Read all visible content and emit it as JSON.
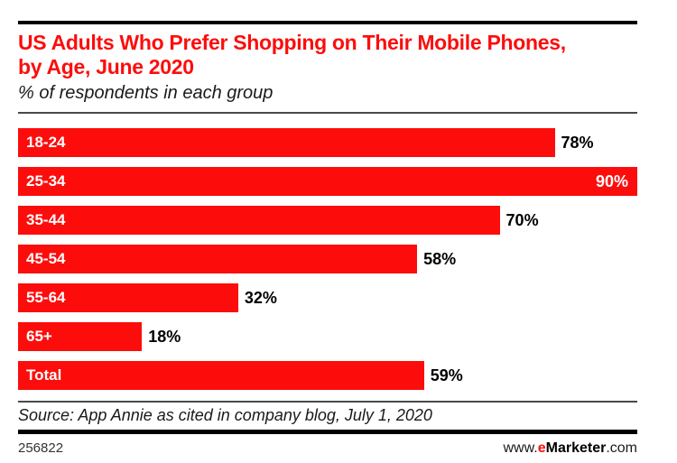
{
  "colors": {
    "accent_red": "#fc0d0c",
    "thin_rule": "#4a4a4a",
    "thick_rule": "#000000",
    "value_label": "#000000",
    "bar_label": "#ffffff"
  },
  "header": {
    "title": "US Adults Who Prefer Shopping on Their Mobile Phones, by Age, June 2020",
    "subtitle": "% of respondents in each group"
  },
  "chart_data": {
    "type": "bar",
    "orientation": "horizontal",
    "title": "US Adults Who Prefer Shopping on Their Mobile Phones, by Age, June 2020",
    "subtitle": "% of respondents in each group",
    "categories": [
      "18-24",
      "25-34",
      "35-44",
      "45-54",
      "55-64",
      "65+",
      "Total"
    ],
    "values": [
      78,
      90,
      70,
      58,
      32,
      18,
      59
    ],
    "value_labels": [
      "78%",
      "90%",
      "70%",
      "58%",
      "32%",
      "18%",
      "59%"
    ],
    "value_label_placement": [
      "outside",
      "inside",
      "outside",
      "outside",
      "outside",
      "outside",
      "outside"
    ],
    "unit": "%",
    "xlim": [
      0,
      90
    ],
    "grid": false,
    "legend": false
  },
  "footer": {
    "source": "Source: App Annie as cited in company blog, July 1, 2020",
    "chart_id": "256822",
    "url": {
      "www": "www.",
      "e": "e",
      "brand": "Marketer",
      "com": ".com"
    }
  }
}
